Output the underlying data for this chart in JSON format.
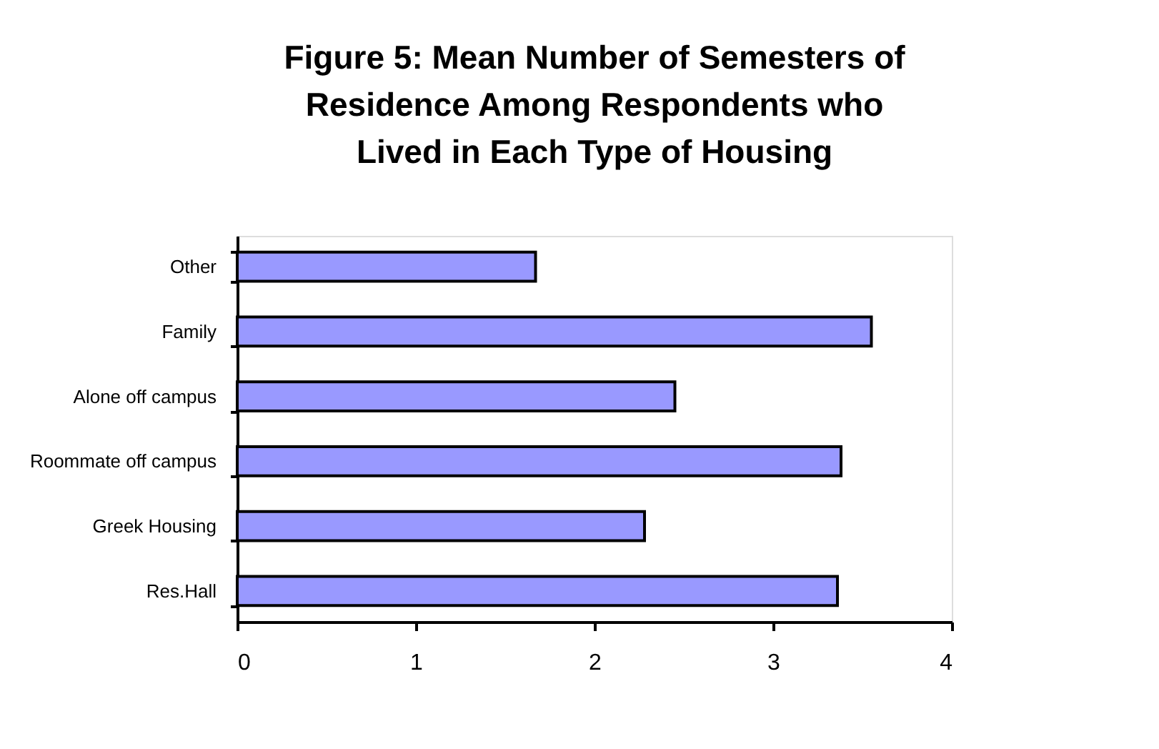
{
  "chart_data": {
    "type": "bar",
    "orientation": "horizontal",
    "title": [
      "Figure 5: Mean Number of Semesters of",
      "Residence Among Respondents who",
      "Lived in Each Type of Housing"
    ],
    "categories": [
      "Other",
      "Family",
      "Alone off campus",
      "Roommate off campus",
      "Greek Housing",
      "Res.Hall"
    ],
    "values": [
      1.67,
      3.55,
      2.45,
      3.38,
      2.28,
      3.36
    ],
    "color": "#9999ff",
    "xlim": [
      0,
      4
    ],
    "xticks": [
      0,
      1,
      2,
      3,
      4
    ],
    "grid": false
  }
}
